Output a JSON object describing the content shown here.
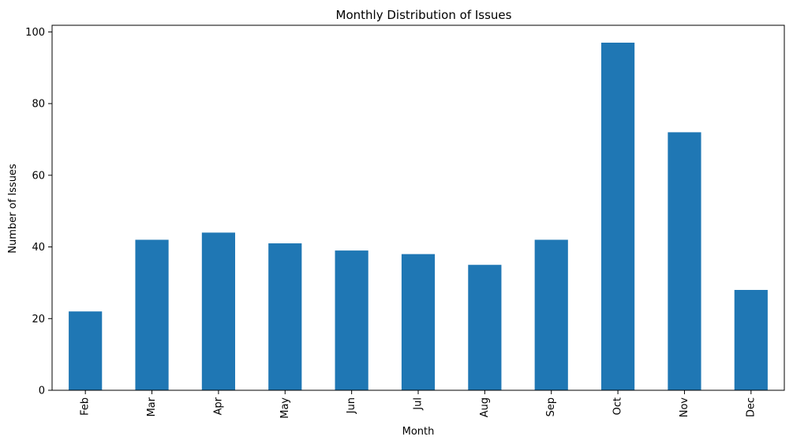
{
  "chart_data": {
    "type": "bar",
    "title": "Monthly Distribution of Issues",
    "xlabel": "Month",
    "ylabel": "Number of Issues",
    "categories": [
      "Feb",
      "Mar",
      "Apr",
      "May",
      "Jun",
      "Jul",
      "Aug",
      "Sep",
      "Oct",
      "Nov",
      "Dec"
    ],
    "values": [
      22,
      42,
      44,
      41,
      39,
      38,
      35,
      42,
      97,
      72,
      28
    ],
    "ylim": [
      0,
      101.85
    ],
    "yticks": [
      0,
      20,
      40,
      60,
      80,
      100
    ],
    "grid": false,
    "bar_color": "#1f77b4"
  }
}
